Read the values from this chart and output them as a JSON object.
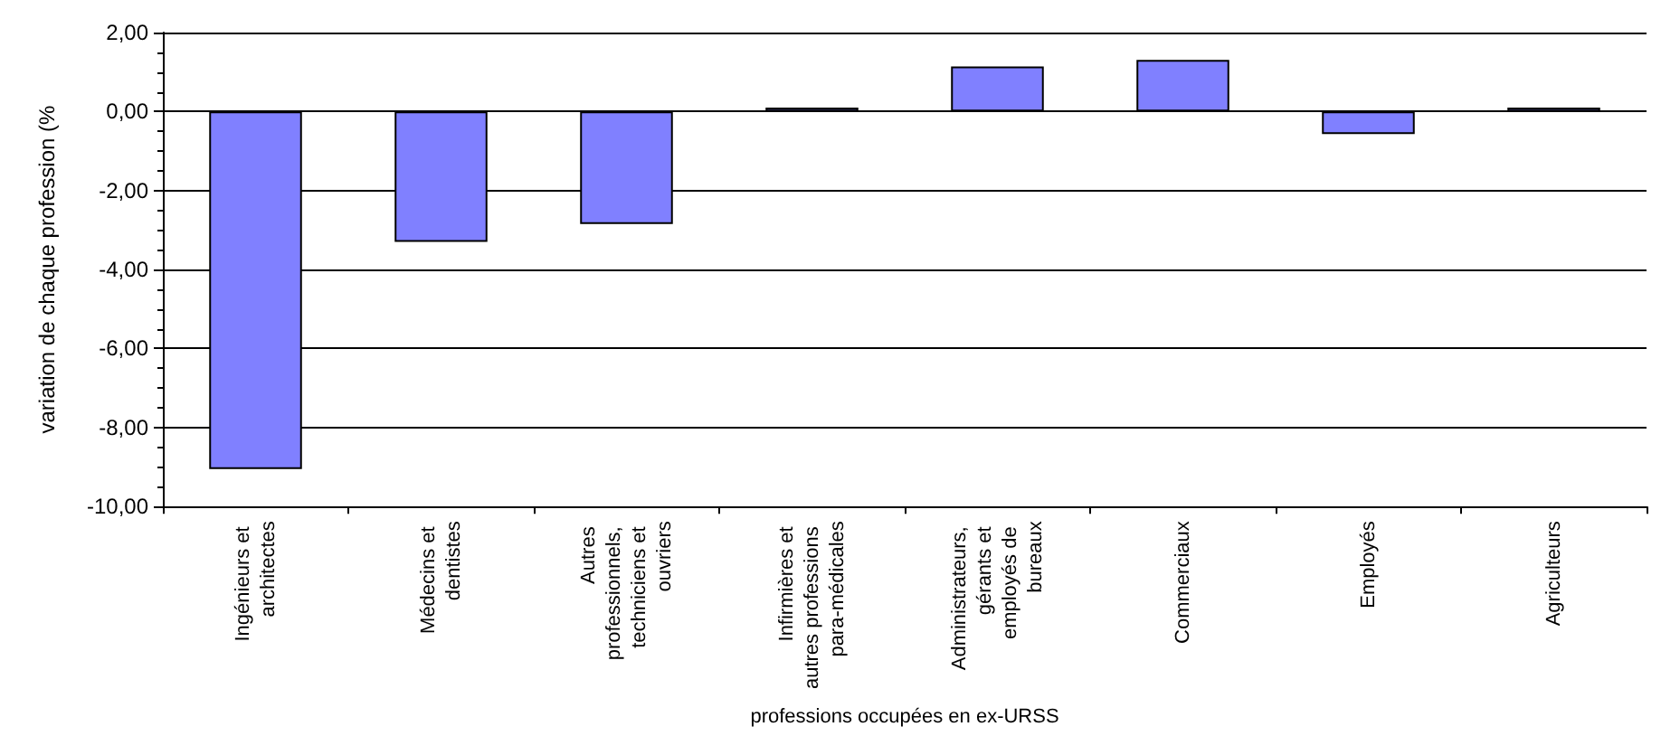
{
  "chart_data": {
    "type": "bar",
    "xlabel": "professions occupées en ex-URSS",
    "ylabel": "variation de chaque profession (%",
    "categories": [
      "Ingénieurs et architectes",
      "Médecins et dentistes",
      "Autres professionnels, techniciens et ouvriers",
      "Infirmières et autres professions para-médicales",
      "Administrateurs, gérants et employés de bureaux",
      "Commerciaux",
      "Employés",
      "Agriculteurs"
    ],
    "values": [
      -9.05,
      -3.3,
      -2.85,
      0.1,
      1.14,
      1.31,
      -0.57,
      0.1
    ],
    "color": "#8080ff",
    "ylim": [
      -10,
      2
    ],
    "yticks": [
      {
        "value": -10,
        "label": "-10,00"
      },
      {
        "value": -8,
        "label": "-8,00"
      },
      {
        "value": -6,
        "label": "-6,00"
      },
      {
        "value": -4,
        "label": "-4,00"
      },
      {
        "value": -2,
        "label": "-2,00"
      },
      {
        "value": 0,
        "label": "0,00"
      },
      {
        "value": 2,
        "label": "2,00"
      }
    ],
    "grid": "y"
  }
}
